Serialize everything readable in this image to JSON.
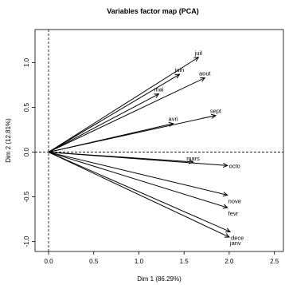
{
  "chart_data": {
    "type": "scatter",
    "title": "Variables factor map (PCA)",
    "xlabel": "Dim 1 (86.29%)",
    "ylabel": "Dim 2 (12.81%)",
    "xlim": [
      -0.15,
      2.6
    ],
    "ylim": [
      -1.11,
      1.37
    ],
    "x_ticks": [
      "0.0",
      "0.5",
      "1.0",
      "1.5",
      "2.0",
      "2.5"
    ],
    "y_ticks": [
      "-1.0",
      "-0.5",
      "0.0",
      "0.5",
      "1.0"
    ],
    "reference_lines": {
      "x": 0,
      "y": 0,
      "style": "dashed"
    },
    "grid": false,
    "legend": "none",
    "variables": [
      {
        "label": "juil",
        "x": 1.66,
        "y": 1.06
      },
      {
        "label": "juin",
        "x": 1.45,
        "y": 0.87
      },
      {
        "label": "aout",
        "x": 1.73,
        "y": 0.83
      },
      {
        "label": "mai",
        "x": 1.22,
        "y": 0.65
      },
      {
        "label": "sept",
        "x": 1.85,
        "y": 0.41
      },
      {
        "label": "avri",
        "x": 1.38,
        "y": 0.32
      },
      {
        "label": "mars",
        "x": 1.6,
        "y": -0.11
      },
      {
        "label": "octo",
        "x": 1.98,
        "y": -0.15
      },
      {
        "label": "nove",
        "x": 1.98,
        "y": -0.48
      },
      {
        "label": "fevr",
        "x": 1.98,
        "y": -0.62
      },
      {
        "label": "dece",
        "x": 2.01,
        "y": -0.89
      },
      {
        "label": "janv",
        "x": 2.0,
        "y": -0.95
      }
    ],
    "colors": {
      "arrows": "#000000",
      "frame": "#000000",
      "background": "#ffffff"
    }
  }
}
